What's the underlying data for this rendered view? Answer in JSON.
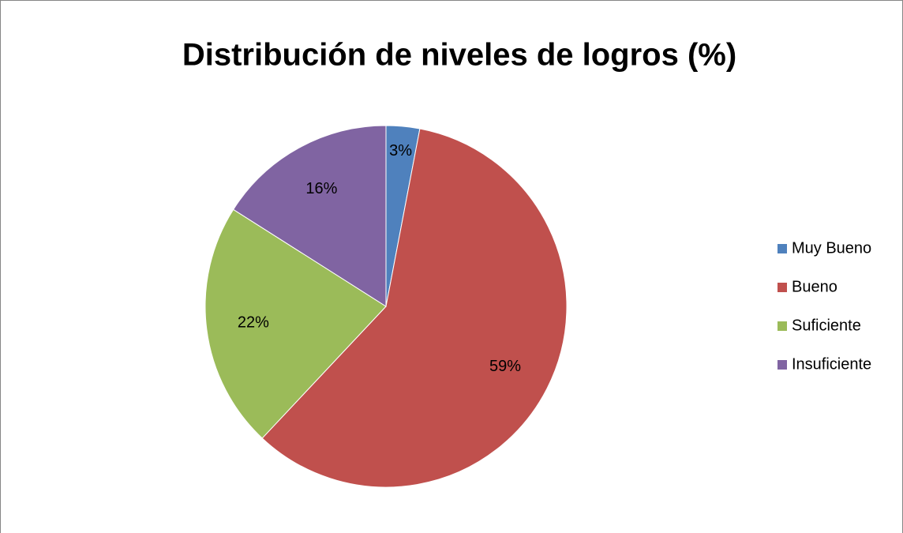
{
  "chart_data": {
    "type": "pie",
    "title": "Distribución de niveles de logros (%)",
    "categories": [
      "Muy Bueno",
      "Bueno",
      "Suficiente",
      "Insuficiente"
    ],
    "values": [
      3,
      59,
      22,
      16
    ],
    "value_labels": [
      "3%",
      "59%",
      "22%",
      "16%"
    ],
    "colors": [
      "#4f81bd",
      "#c0504d",
      "#9bbb59",
      "#8064a2"
    ],
    "legend": "right"
  }
}
